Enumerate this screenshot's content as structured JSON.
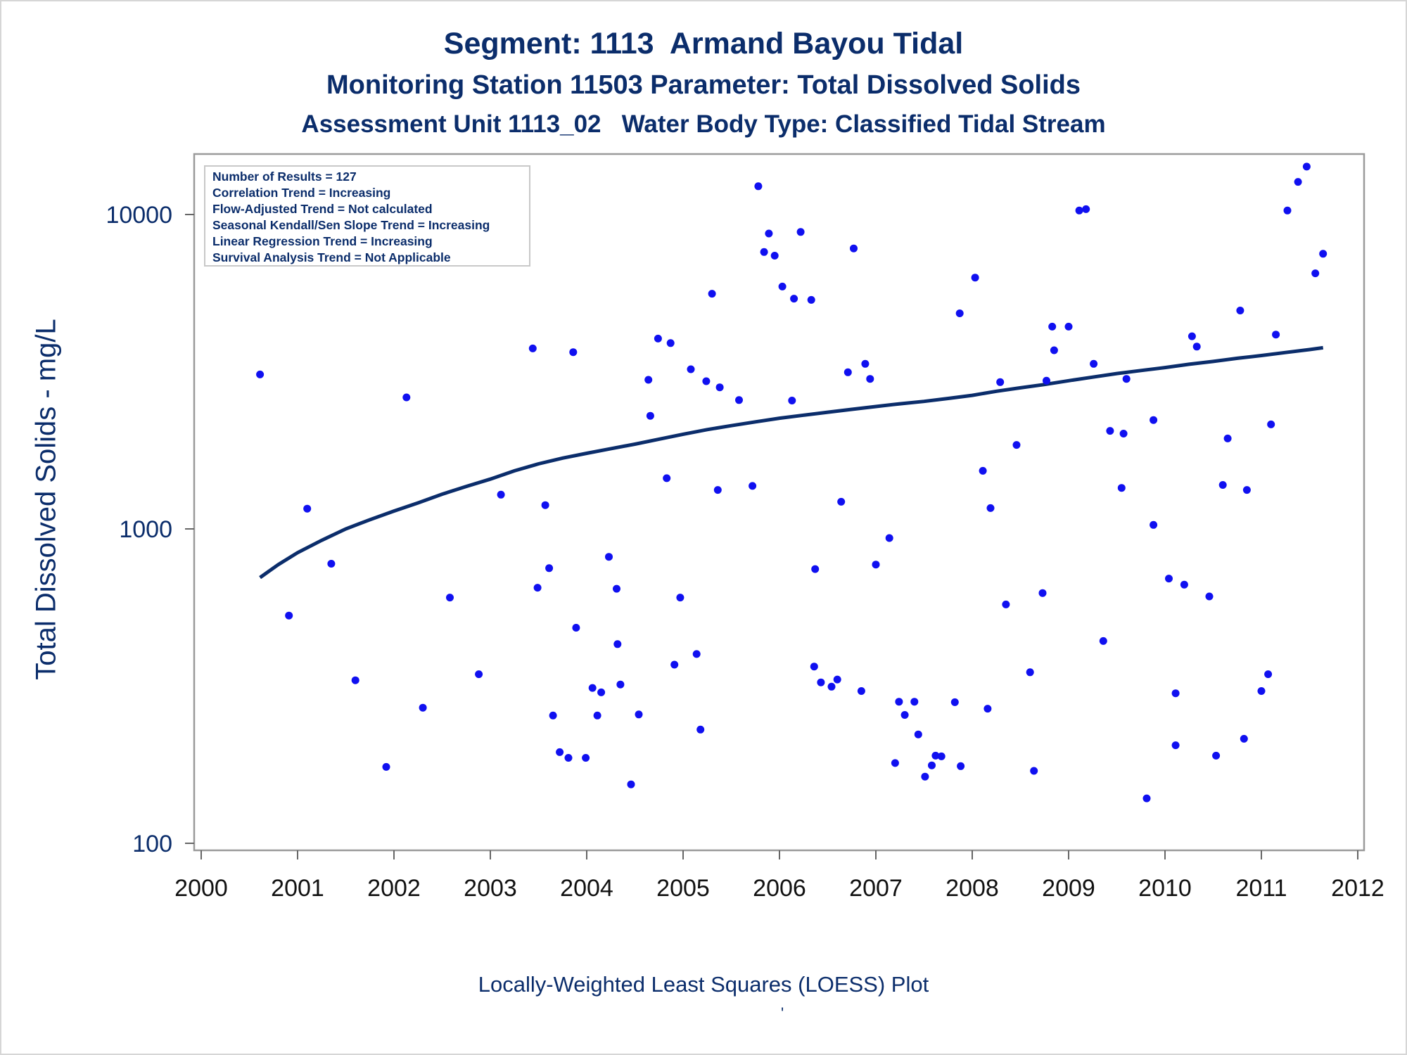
{
  "titles": {
    "line1": "Segment: 1113  Armand Bayou Tidal",
    "line2": "Monitoring Station 11503 Parameter: Total Dissolved Solids",
    "line3": "Assessment Unit 1113_02   Water Body Type: Classified Tidal Stream"
  },
  "footnote": "Locally-Weighted Least Squares (LOESS) Plot",
  "footnote_mark": "'",
  "chart_data": {
    "type": "scatter",
    "ylabel": "Total Dissolved Solids - mg/L",
    "xlabel": "",
    "y_scale": "log",
    "xlim": [
      2000,
      2012
    ],
    "ylim": [
      100,
      15000
    ],
    "x_ticks": [
      "2000",
      "2001",
      "2002",
      "2003",
      "2004",
      "2005",
      "2006",
      "2007",
      "2008",
      "2009",
      "2010",
      "2011",
      "2012"
    ],
    "y_ticks": [
      "100",
      "1000",
      "10000"
    ],
    "grid": false,
    "legend_position": "top-left",
    "legend_lines": [
      "Number of Results = 127",
      "Correlation Trend = Increasing",
      "Flow-Adjusted Trend = Not calculated",
      "Seasonal Kendall/Sen Slope Trend = Increasing",
      "Linear Regression Trend = Increasing",
      "Survival Analysis Trend = Not Applicable"
    ],
    "colors": {
      "points": "#1010f0",
      "loess": "#0b2d6b",
      "text": "#0b2d6b",
      "axis": "#9a9a9a"
    },
    "points": [
      [
        2000.61,
        3100
      ],
      [
        2000.91,
        530
      ],
      [
        2001.1,
        1160
      ],
      [
        2001.35,
        775
      ],
      [
        2001.6,
        330
      ],
      [
        2001.92,
        175
      ],
      [
        2002.13,
        2620
      ],
      [
        2002.3,
        270
      ],
      [
        2002.58,
        605
      ],
      [
        2002.88,
        345
      ],
      [
        2003.11,
        1285
      ],
      [
        2003.44,
        3750
      ],
      [
        2003.49,
        650
      ],
      [
        2003.57,
        1190
      ],
      [
        2003.61,
        750
      ],
      [
        2003.65,
        255
      ],
      [
        2003.72,
        195
      ],
      [
        2003.81,
        187
      ],
      [
        2003.86,
        3650
      ],
      [
        2003.89,
        485
      ],
      [
        2003.99,
        187
      ],
      [
        2004.06,
        312
      ],
      [
        2004.11,
        255
      ],
      [
        2004.15,
        302
      ],
      [
        2004.23,
        815
      ],
      [
        2004.31,
        645
      ],
      [
        2004.32,
        430
      ],
      [
        2004.35,
        320
      ],
      [
        2004.46,
        154
      ],
      [
        2004.54,
        257
      ],
      [
        2004.64,
        2980
      ],
      [
        2004.66,
        2290
      ],
      [
        2004.74,
        4030
      ],
      [
        2004.83,
        1450
      ],
      [
        2004.87,
        3900
      ],
      [
        2004.91,
        370
      ],
      [
        2004.97,
        605
      ],
      [
        2005.08,
        3220
      ],
      [
        2005.14,
        400
      ],
      [
        2005.18,
        230
      ],
      [
        2005.24,
        2950
      ],
      [
        2005.3,
        5600
      ],
      [
        2005.36,
        1330
      ],
      [
        2005.38,
        2820
      ],
      [
        2005.58,
        2570
      ],
      [
        2005.72,
        1370
      ],
      [
        2005.78,
        12300
      ],
      [
        2005.84,
        7600
      ],
      [
        2005.89,
        8700
      ],
      [
        2005.95,
        7400
      ],
      [
        2006.03,
        5900
      ],
      [
        2006.13,
        2560
      ],
      [
        2006.15,
        5400
      ],
      [
        2006.22,
        8800
      ],
      [
        2006.33,
        5350
      ],
      [
        2006.36,
        365
      ],
      [
        2006.37,
        745
      ],
      [
        2006.43,
        325
      ],
      [
        2006.54,
        315
      ],
      [
        2006.6,
        332
      ],
      [
        2006.64,
        1220
      ],
      [
        2006.71,
        3150
      ],
      [
        2006.77,
        7800
      ],
      [
        2006.85,
        305
      ],
      [
        2006.89,
        3350
      ],
      [
        2006.94,
        3000
      ],
      [
        2007.0,
        770
      ],
      [
        2007.14,
        935
      ],
      [
        2007.2,
        180
      ],
      [
        2007.24,
        282
      ],
      [
        2007.3,
        256
      ],
      [
        2007.4,
        282
      ],
      [
        2007.44,
        222
      ],
      [
        2007.51,
        163
      ],
      [
        2007.58,
        177
      ],
      [
        2007.62,
        190
      ],
      [
        2007.68,
        189
      ],
      [
        2007.82,
        281
      ],
      [
        2007.87,
        4850
      ],
      [
        2007.88,
        176
      ],
      [
        2008.03,
        6300
      ],
      [
        2008.11,
        1530
      ],
      [
        2008.16,
        268
      ],
      [
        2008.19,
        1165
      ],
      [
        2008.29,
        2930
      ],
      [
        2008.35,
        575
      ],
      [
        2008.46,
        1850
      ],
      [
        2008.6,
        350
      ],
      [
        2008.64,
        170
      ],
      [
        2008.73,
        625
      ],
      [
        2008.77,
        2960
      ],
      [
        2008.83,
        4400
      ],
      [
        2008.85,
        3700
      ],
      [
        2009.0,
        4400
      ],
      [
        2009.11,
        10300
      ],
      [
        2009.18,
        10400
      ],
      [
        2009.26,
        3350
      ],
      [
        2009.36,
        440
      ],
      [
        2009.43,
        2050
      ],
      [
        2009.55,
        1350
      ],
      [
        2009.57,
        2010
      ],
      [
        2009.6,
        3000
      ],
      [
        2009.81,
        139
      ],
      [
        2009.88,
        1030
      ],
      [
        2009.88,
        2220
      ],
      [
        2010.04,
        695
      ],
      [
        2010.11,
        300
      ],
      [
        2010.11,
        205
      ],
      [
        2010.2,
        665
      ],
      [
        2010.28,
        4100
      ],
      [
        2010.33,
        3800
      ],
      [
        2010.46,
        610
      ],
      [
        2010.53,
        190
      ],
      [
        2010.6,
        1380
      ],
      [
        2010.65,
        1940
      ],
      [
        2010.78,
        4950
      ],
      [
        2010.82,
        215
      ],
      [
        2010.85,
        1330
      ],
      [
        2011.0,
        305
      ],
      [
        2011.07,
        345
      ],
      [
        2011.1,
        2150
      ],
      [
        2011.15,
        4150
      ],
      [
        2011.27,
        10300
      ],
      [
        2011.38,
        12700
      ],
      [
        2011.47,
        14200
      ],
      [
        2011.56,
        6500
      ],
      [
        2011.64,
        7500
      ]
    ],
    "loess": [
      [
        2000.61,
        700
      ],
      [
        2000.8,
        770
      ],
      [
        2001.0,
        840
      ],
      [
        2001.25,
        920
      ],
      [
        2001.5,
        1000
      ],
      [
        2001.75,
        1070
      ],
      [
        2002.0,
        1140
      ],
      [
        2002.25,
        1210
      ],
      [
        2002.5,
        1290
      ],
      [
        2002.75,
        1365
      ],
      [
        2003.0,
        1440
      ],
      [
        2003.25,
        1530
      ],
      [
        2003.5,
        1610
      ],
      [
        2003.75,
        1680
      ],
      [
        2004.0,
        1740
      ],
      [
        2004.25,
        1800
      ],
      [
        2004.5,
        1860
      ],
      [
        2004.75,
        1930
      ],
      [
        2005.0,
        2000
      ],
      [
        2005.25,
        2070
      ],
      [
        2005.5,
        2130
      ],
      [
        2005.75,
        2190
      ],
      [
        2006.0,
        2250
      ],
      [
        2006.25,
        2300
      ],
      [
        2006.5,
        2350
      ],
      [
        2006.75,
        2400
      ],
      [
        2007.0,
        2450
      ],
      [
        2007.25,
        2500
      ],
      [
        2007.5,
        2545
      ],
      [
        2007.75,
        2600
      ],
      [
        2008.0,
        2660
      ],
      [
        2008.25,
        2740
      ],
      [
        2008.5,
        2810
      ],
      [
        2008.75,
        2880
      ],
      [
        2009.0,
        2960
      ],
      [
        2009.25,
        3040
      ],
      [
        2009.5,
        3120
      ],
      [
        2009.75,
        3190
      ],
      [
        2010.0,
        3260
      ],
      [
        2010.25,
        3340
      ],
      [
        2010.5,
        3410
      ],
      [
        2010.75,
        3490
      ],
      [
        2011.0,
        3560
      ],
      [
        2011.25,
        3640
      ],
      [
        2011.5,
        3720
      ],
      [
        2011.64,
        3770
      ]
    ]
  }
}
